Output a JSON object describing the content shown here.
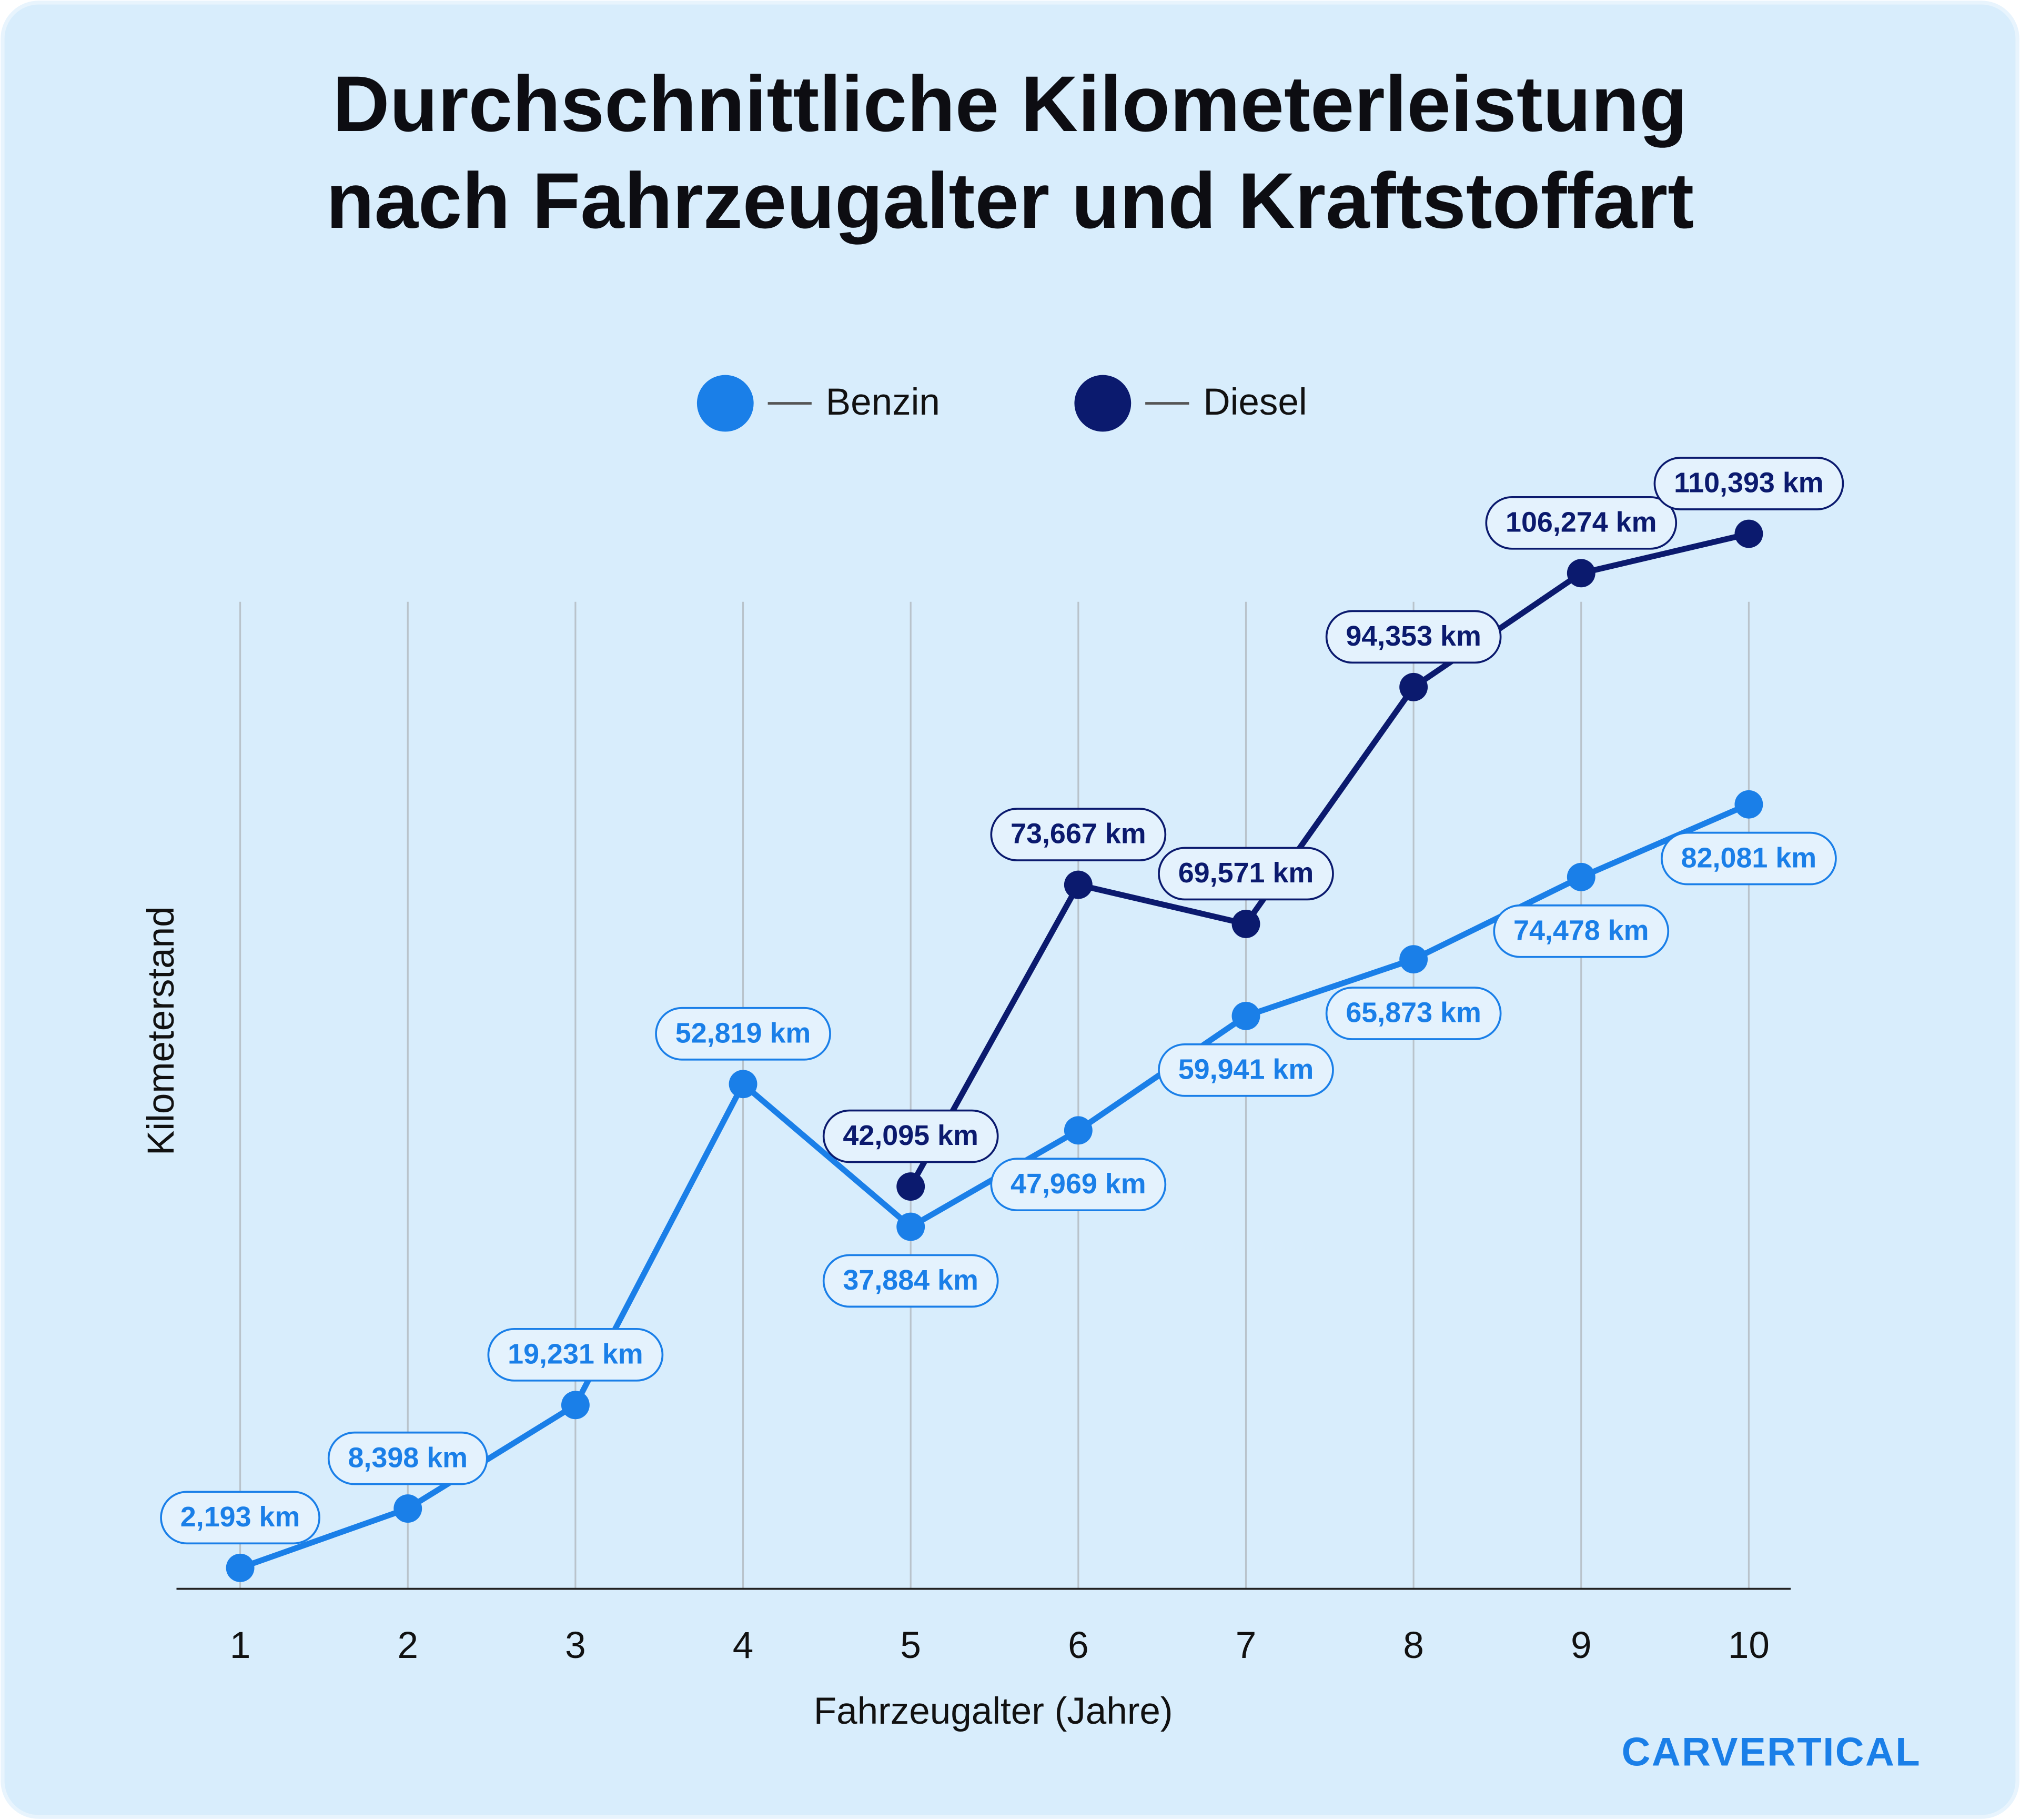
{
  "chart_data": {
    "type": "line",
    "title": "Durchschnittliche Kilometerleistung\nnach Fahrzeugalter und Kraftstoffart",
    "x_label": "Fahrzeugalter (Jahre)",
    "y_label": "Kilometerstand",
    "x": [
      1,
      2,
      3,
      4,
      5,
      6,
      7,
      8,
      9,
      10
    ],
    "xlim": [
      0.62,
      10.25
    ],
    "xticks": [
      1,
      2,
      3,
      4,
      5,
      6,
      7,
      8,
      9,
      10
    ],
    "ylim": [
      0,
      120000
    ],
    "grid": true,
    "series": [
      {
        "name": "Benzin",
        "color": "#1a7fe8",
        "values": [
          2193,
          8398,
          19231,
          52819,
          37884,
          47969,
          59941,
          65873,
          74478,
          82081
        ],
        "value_labels": [
          "2,193 km",
          "8,398 km",
          "19,231 km",
          "52,819 km",
          "37,884 km",
          "47,969 km",
          "59,941 km",
          "65,873 km",
          "74,478 km",
          "82,081 km"
        ]
      },
      {
        "name": "Diesel",
        "color": "#0b1a6e",
        "values": [
          null,
          null,
          null,
          null,
          42095,
          73667,
          69571,
          94353,
          106274,
          110393
        ],
        "value_labels": [
          null,
          null,
          null,
          null,
          "42,095 km",
          "73,667 km",
          "69,571 km",
          "94,353 km",
          "106,274 km",
          "110,393 km"
        ]
      }
    ]
  },
  "logo": "CARVERTICAL"
}
